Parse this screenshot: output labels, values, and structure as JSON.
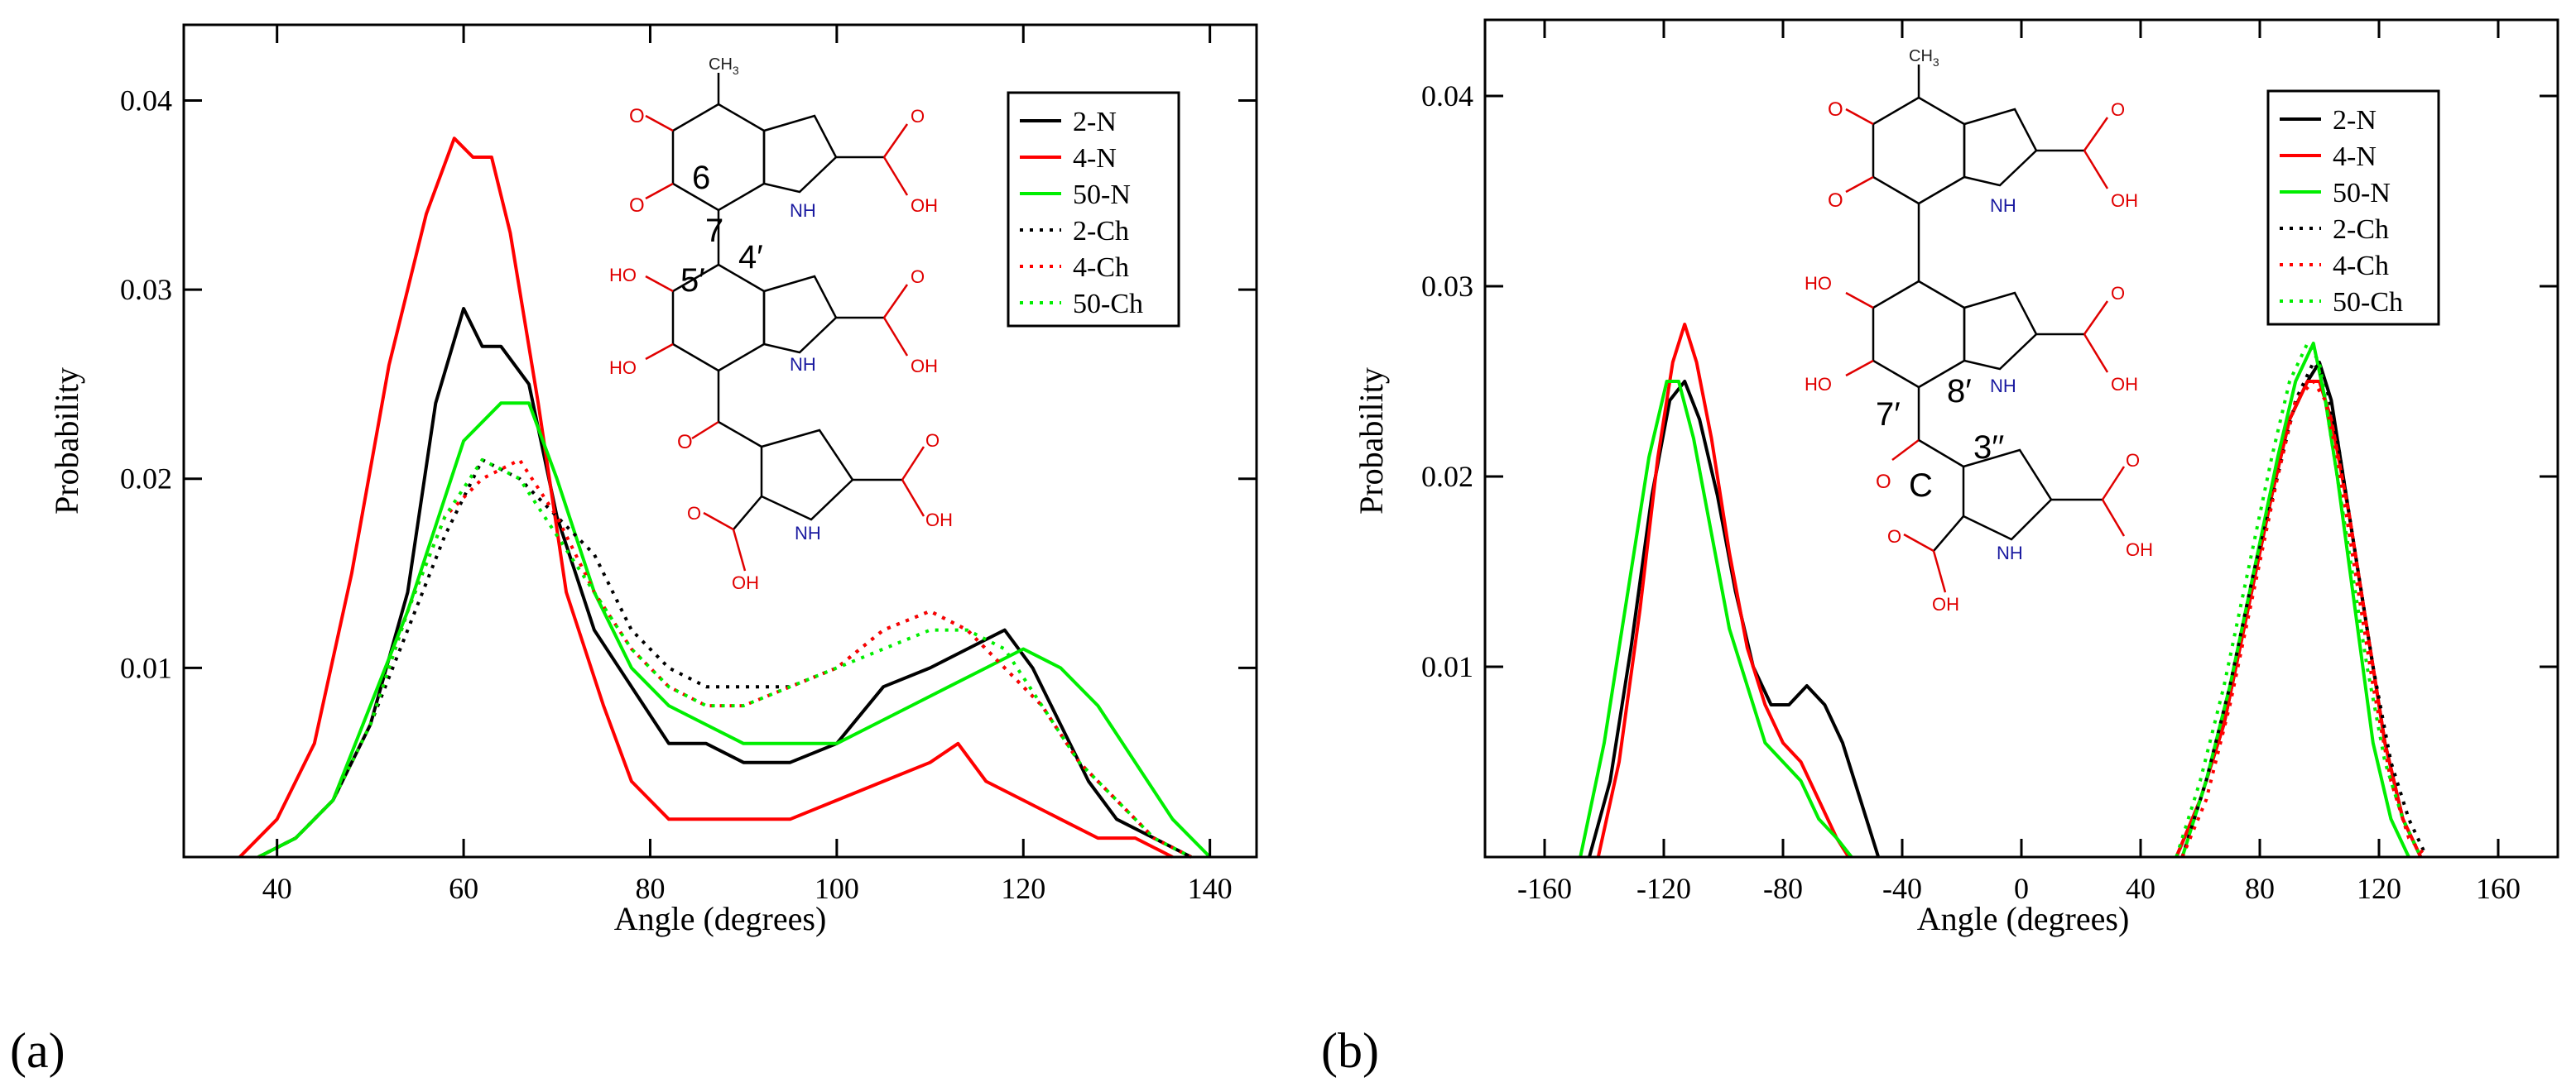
{
  "chart_data": [
    {
      "type": "line",
      "panel": "(a)",
      "xlabel": "Angle (degrees)",
      "ylabel": "Probability",
      "xlim": [
        30,
        145
      ],
      "ylim": [
        0,
        0.044
      ],
      "xticks": [
        40,
        60,
        80,
        100,
        120,
        140
      ],
      "yticks": [
        0.01,
        0.02,
        0.03,
        0.04
      ],
      "ytick_labels": [
        "0.01",
        "0.02",
        "0.03",
        "0.04"
      ],
      "legend_position": "top-right",
      "molecule_labels": [
        "6",
        "7",
        "5′",
        "4′"
      ],
      "series": [
        {
          "name": "2-N",
          "color": "#000000",
          "style": "solid",
          "x": [
            38,
            42,
            46,
            50,
            54,
            57,
            60,
            62,
            64,
            67,
            70,
            74,
            78,
            82,
            86,
            90,
            95,
            100,
            105,
            110,
            114,
            118,
            121,
            124,
            127,
            130,
            134,
            138
          ],
          "y": [
            0.0,
            0.001,
            0.003,
            0.007,
            0.014,
            0.024,
            0.029,
            0.027,
            0.027,
            0.025,
            0.018,
            0.012,
            0.009,
            0.006,
            0.006,
            0.005,
            0.005,
            0.006,
            0.009,
            0.01,
            0.011,
            0.012,
            0.01,
            0.007,
            0.004,
            0.002,
            0.001,
            0.0
          ]
        },
        {
          "name": "4-N",
          "color": "#ff0000",
          "style": "solid",
          "x": [
            36,
            40,
            44,
            48,
            52,
            56,
            59,
            61,
            63,
            65,
            68,
            71,
            75,
            78,
            82,
            86,
            90,
            95,
            100,
            105,
            110,
            113,
            116,
            120,
            124,
            128,
            132,
            136
          ],
          "y": [
            0.0,
            0.002,
            0.006,
            0.015,
            0.026,
            0.034,
            0.038,
            0.037,
            0.037,
            0.033,
            0.024,
            0.014,
            0.008,
            0.004,
            0.002,
            0.002,
            0.002,
            0.002,
            0.003,
            0.004,
            0.005,
            0.006,
            0.004,
            0.003,
            0.002,
            0.001,
            0.001,
            0.0
          ]
        },
        {
          "name": "50-N",
          "color": "#00ee00",
          "style": "solid",
          "x": [
            38,
            42,
            46,
            50,
            54,
            58,
            60,
            64,
            67,
            70,
            74,
            78,
            82,
            86,
            90,
            95,
            100,
            104,
            108,
            112,
            116,
            120,
            124,
            128,
            132,
            136,
            140
          ],
          "y": [
            0.0,
            0.001,
            0.003,
            0.008,
            0.013,
            0.019,
            0.022,
            0.024,
            0.024,
            0.02,
            0.014,
            0.01,
            0.008,
            0.007,
            0.006,
            0.006,
            0.006,
            0.007,
            0.008,
            0.009,
            0.01,
            0.011,
            0.01,
            0.008,
            0.005,
            0.002,
            0.0
          ]
        },
        {
          "name": "2-Ch",
          "color": "#000000",
          "style": "dotted",
          "x": [
            38,
            42,
            46,
            50,
            54,
            58,
            62,
            66,
            70,
            74,
            78,
            82,
            86,
            90,
            95,
            100,
            105,
            110,
            114,
            118,
            122,
            126,
            130,
            134,
            138
          ],
          "y": [
            0.0,
            0.001,
            0.003,
            0.007,
            0.012,
            0.017,
            0.021,
            0.02,
            0.018,
            0.016,
            0.012,
            0.01,
            0.009,
            0.009,
            0.009,
            0.01,
            0.012,
            0.013,
            0.012,
            0.01,
            0.008,
            0.005,
            0.003,
            0.001,
            0.0
          ]
        },
        {
          "name": "4-Ch",
          "color": "#ff0000",
          "style": "dotted",
          "x": [
            38,
            42,
            46,
            50,
            54,
            58,
            62,
            66,
            70,
            74,
            78,
            82,
            86,
            90,
            95,
            100,
            105,
            110,
            114,
            118,
            122,
            126,
            130,
            134,
            138
          ],
          "y": [
            0.0,
            0.001,
            0.003,
            0.007,
            0.013,
            0.018,
            0.02,
            0.021,
            0.018,
            0.014,
            0.011,
            0.009,
            0.008,
            0.008,
            0.009,
            0.01,
            0.012,
            0.013,
            0.012,
            0.01,
            0.008,
            0.005,
            0.003,
            0.001,
            0.0
          ]
        },
        {
          "name": "50-Ch",
          "color": "#00ee00",
          "style": "dotted",
          "x": [
            38,
            42,
            46,
            50,
            54,
            58,
            62,
            66,
            70,
            74,
            78,
            82,
            86,
            90,
            95,
            100,
            105,
            110,
            114,
            118,
            122,
            126,
            130,
            134,
            138
          ],
          "y": [
            0.0,
            0.001,
            0.003,
            0.007,
            0.013,
            0.018,
            0.021,
            0.02,
            0.017,
            0.014,
            0.011,
            0.009,
            0.008,
            0.008,
            0.009,
            0.01,
            0.011,
            0.012,
            0.012,
            0.011,
            0.008,
            0.005,
            0.003,
            0.001,
            0.0
          ]
        }
      ]
    },
    {
      "type": "line",
      "panel": "(b)",
      "xlabel": "Angle (degrees)",
      "ylabel": "Probability",
      "xlim": [
        -180,
        180
      ],
      "ylim": [
        0,
        0.044
      ],
      "xticks": [
        -160,
        -120,
        -80,
        -40,
        0,
        40,
        80,
        120,
        160
      ],
      "yticks": [
        0.01,
        0.02,
        0.03,
        0.04
      ],
      "ytick_labels": [
        "0.01",
        "0.02",
        "0.03",
        "0.04"
      ],
      "legend_position": "top-right",
      "molecule_labels": [
        "7′",
        "8′",
        "3′′",
        "C"
      ],
      "series": [
        {
          "name": "2-N",
          "color": "#000000",
          "style": "solid",
          "x": [
            -145,
            -138,
            -131,
            -124,
            -118,
            -113,
            -108,
            -102,
            -96,
            -90,
            -84,
            -78,
            -72,
            -66,
            -60,
            -54,
            -48,
            52,
            60,
            68,
            76,
            84,
            90,
            96,
            100,
            104,
            110,
            116,
            122,
            128,
            134
          ],
          "y": [
            0.0,
            0.004,
            0.011,
            0.019,
            0.024,
            0.025,
            0.023,
            0.019,
            0.014,
            0.01,
            0.008,
            0.008,
            0.009,
            0.008,
            0.006,
            0.003,
            0.0,
            0.0,
            0.003,
            0.007,
            0.013,
            0.019,
            0.023,
            0.025,
            0.026,
            0.024,
            0.018,
            0.012,
            0.006,
            0.002,
            0.0
          ]
        },
        {
          "name": "4-N",
          "color": "#ff0000",
          "style": "solid",
          "x": [
            -142,
            -135,
            -128,
            -122,
            -117,
            -113,
            -109,
            -104,
            -98,
            -92,
            -86,
            -80,
            -74,
            -68,
            -62,
            -58,
            52,
            60,
            68,
            76,
            84,
            90,
            96,
            100,
            104,
            110,
            116,
            122,
            128,
            134
          ],
          "y": [
            0.0,
            0.005,
            0.013,
            0.021,
            0.026,
            0.028,
            0.026,
            0.022,
            0.016,
            0.011,
            0.008,
            0.006,
            0.005,
            0.003,
            0.001,
            0.0,
            0.0,
            0.003,
            0.007,
            0.013,
            0.019,
            0.023,
            0.025,
            0.025,
            0.023,
            0.018,
            0.012,
            0.006,
            0.002,
            0.0
          ]
        },
        {
          "name": "50-N",
          "color": "#00ee00",
          "style": "solid",
          "x": [
            -148,
            -140,
            -132,
            -125,
            -119,
            -115,
            -110,
            -104,
            -98,
            -92,
            -86,
            -80,
            -74,
            -68,
            -62,
            -57,
            54,
            62,
            70,
            78,
            86,
            92,
            98,
            102,
            106,
            112,
            118,
            124,
            130
          ],
          "y": [
            0.0,
            0.006,
            0.014,
            0.021,
            0.025,
            0.025,
            0.022,
            0.017,
            0.012,
            0.009,
            0.006,
            0.005,
            0.004,
            0.002,
            0.001,
            0.0,
            0.0,
            0.004,
            0.009,
            0.015,
            0.021,
            0.025,
            0.027,
            0.024,
            0.02,
            0.013,
            0.006,
            0.002,
            0.0
          ]
        },
        {
          "name": "2-Ch",
          "color": "#000000",
          "style": "dotted",
          "x": [
            54,
            62,
            70,
            78,
            86,
            92,
            98,
            102,
            106,
            112,
            118,
            124,
            130,
            136
          ],
          "y": [
            0.0,
            0.004,
            0.009,
            0.015,
            0.02,
            0.024,
            0.026,
            0.025,
            0.022,
            0.016,
            0.01,
            0.005,
            0.002,
            0.0
          ]
        },
        {
          "name": "4-Ch",
          "color": "#ff0000",
          "style": "dotted",
          "x": [
            54,
            62,
            70,
            78,
            86,
            92,
            98,
            102,
            106,
            112,
            118,
            124,
            130,
            136
          ],
          "y": [
            0.0,
            0.003,
            0.008,
            0.014,
            0.02,
            0.024,
            0.025,
            0.024,
            0.021,
            0.015,
            0.009,
            0.004,
            0.001,
            0.0
          ]
        },
        {
          "name": "50-Ch",
          "color": "#00ee00",
          "style": "dotted",
          "x": [
            52,
            60,
            68,
            76,
            84,
            90,
            96,
            100,
            104,
            110,
            116,
            122,
            128,
            134
          ],
          "y": [
            0.0,
            0.004,
            0.009,
            0.015,
            0.021,
            0.025,
            0.027,
            0.026,
            0.022,
            0.016,
            0.01,
            0.005,
            0.002,
            0.0
          ]
        }
      ]
    }
  ],
  "molecule": {
    "atoms": {
      "ch3": "CH",
      "ch3_sub": "3",
      "o": "O",
      "oh": "OH",
      "ho": "HO",
      "nh": "NH"
    }
  }
}
